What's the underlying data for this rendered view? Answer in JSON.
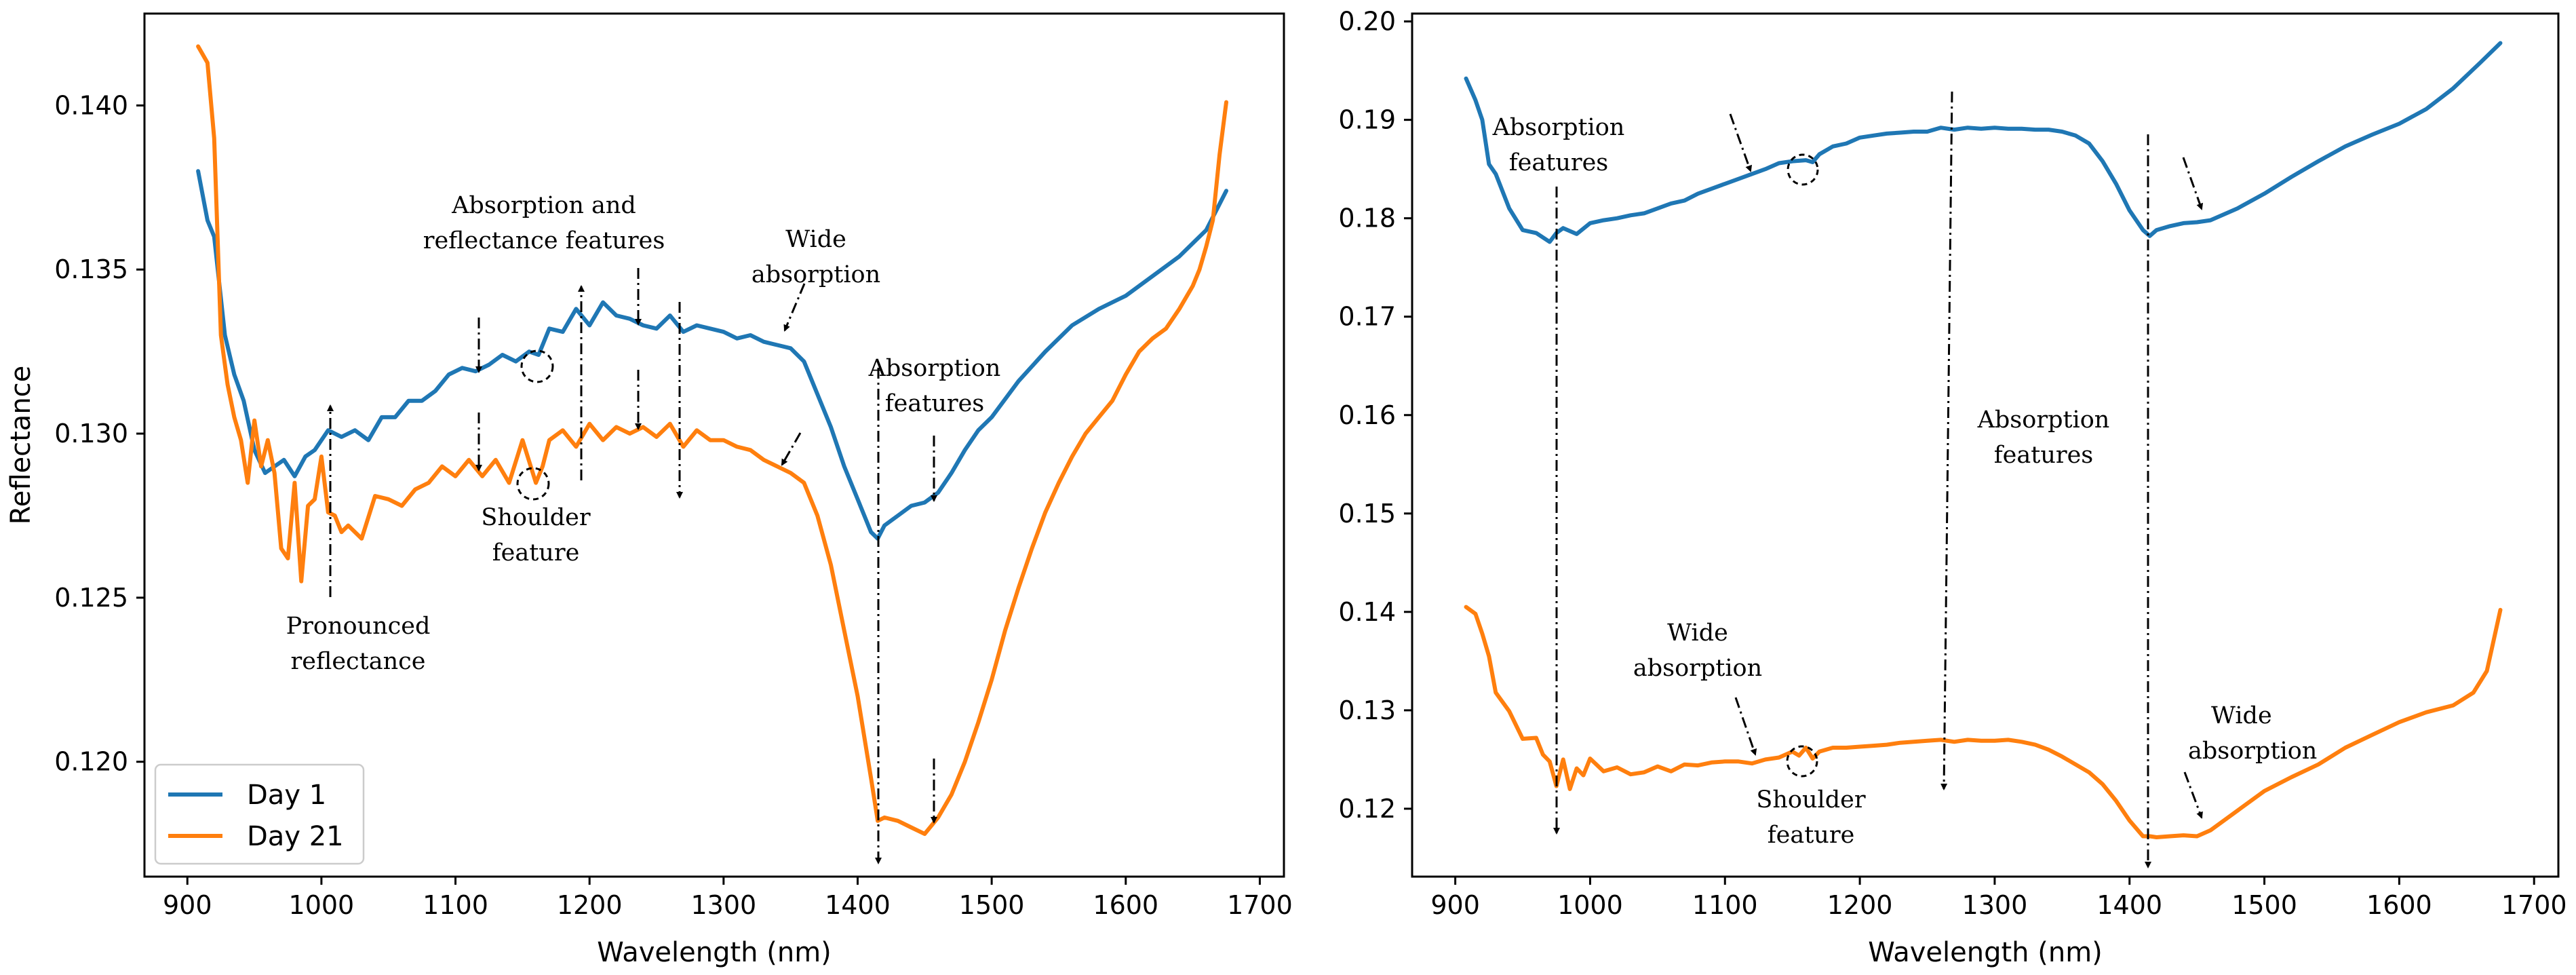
{
  "colors": {
    "day1": "#1f77b4",
    "day21": "#ff7f0e"
  },
  "chart_data": [
    {
      "type": "line",
      "title": "",
      "xlabel": "Wavelength (nm)",
      "ylabel": "Reflectance",
      "xlim": [
        868,
        1718
      ],
      "ylim": [
        0.1165,
        0.1428
      ],
      "xticks": [
        900,
        1000,
        1100,
        1200,
        1300,
        1400,
        1500,
        1600,
        1700
      ],
      "xtick_labels": [
        "900",
        "1000",
        "1100",
        "1200",
        "1300",
        "1400",
        "1500",
        "1600",
        "1700"
      ],
      "yticks": [
        0.12,
        0.125,
        0.13,
        0.135,
        0.14
      ],
      "ytick_labels": [
        "0.120",
        "0.125",
        "0.130",
        "0.135",
        "0.140"
      ],
      "legend": {
        "position": "lower-left",
        "entries": [
          "Day 1",
          "Day 21"
        ]
      },
      "series": [
        {
          "name": "Day 1",
          "color": "#1f77b4",
          "x": [
            908,
            915,
            920,
            928,
            935,
            942,
            950,
            958,
            965,
            972,
            980,
            988,
            995,
            1005,
            1015,
            1025,
            1035,
            1045,
            1055,
            1065,
            1075,
            1085,
            1095,
            1105,
            1115,
            1125,
            1135,
            1145,
            1155,
            1162,
            1170,
            1180,
            1190,
            1200,
            1210,
            1220,
            1230,
            1240,
            1250,
            1260,
            1270,
            1280,
            1290,
            1300,
            1310,
            1320,
            1330,
            1340,
            1350,
            1360,
            1370,
            1380,
            1390,
            1400,
            1410,
            1415,
            1420,
            1430,
            1440,
            1450,
            1460,
            1470,
            1480,
            1490,
            1500,
            1520,
            1540,
            1560,
            1580,
            1600,
            1620,
            1640,
            1660,
            1675
          ],
          "y": [
            0.138,
            0.1365,
            0.136,
            0.133,
            0.1318,
            0.131,
            0.1295,
            0.1288,
            0.129,
            0.1292,
            0.1287,
            0.1293,
            0.1295,
            0.1301,
            0.1299,
            0.1301,
            0.1298,
            0.1305,
            0.1305,
            0.131,
            0.131,
            0.1313,
            0.1318,
            0.132,
            0.1319,
            0.1321,
            0.1324,
            0.1322,
            0.1325,
            0.1324,
            0.1332,
            0.1331,
            0.1338,
            0.1333,
            0.134,
            0.1336,
            0.1335,
            0.1333,
            0.1332,
            0.1336,
            0.1331,
            0.1333,
            0.1332,
            0.1331,
            0.1329,
            0.133,
            0.1328,
            0.1327,
            0.1326,
            0.1322,
            0.1312,
            0.1302,
            0.129,
            0.128,
            0.127,
            0.1268,
            0.1272,
            0.1275,
            0.1278,
            0.1279,
            0.1282,
            0.1288,
            0.1295,
            0.1301,
            0.1305,
            0.1316,
            0.1325,
            0.1333,
            0.1338,
            0.1342,
            0.1348,
            0.1354,
            0.1362,
            0.1374
          ]
        },
        {
          "name": "Day 21",
          "color": "#ff7f0e",
          "x": [
            908,
            915,
            920,
            925,
            930,
            935,
            940,
            945,
            950,
            955,
            960,
            965,
            970,
            975,
            980,
            985,
            990,
            995,
            1000,
            1005,
            1010,
            1015,
            1020,
            1030,
            1040,
            1050,
            1060,
            1070,
            1080,
            1090,
            1100,
            1110,
            1120,
            1130,
            1140,
            1150,
            1160,
            1165,
            1170,
            1180,
            1190,
            1200,
            1210,
            1220,
            1230,
            1240,
            1250,
            1260,
            1270,
            1280,
            1290,
            1300,
            1310,
            1320,
            1330,
            1340,
            1350,
            1360,
            1370,
            1380,
            1390,
            1400,
            1410,
            1415,
            1420,
            1430,
            1440,
            1450,
            1460,
            1470,
            1480,
            1490,
            1500,
            1510,
            1520,
            1530,
            1540,
            1550,
            1560,
            1570,
            1580,
            1590,
            1600,
            1610,
            1620,
            1630,
            1640,
            1650,
            1655,
            1660,
            1665,
            1670,
            1675
          ],
          "y": [
            0.1418,
            0.1413,
            0.139,
            0.133,
            0.1315,
            0.1305,
            0.1298,
            0.1285,
            0.1304,
            0.129,
            0.1298,
            0.1288,
            0.1265,
            0.1262,
            0.1285,
            0.1255,
            0.1278,
            0.128,
            0.1293,
            0.1276,
            0.1275,
            0.127,
            0.1272,
            0.1268,
            0.1281,
            0.128,
            0.1278,
            0.1283,
            0.1285,
            0.129,
            0.1287,
            0.1292,
            0.1287,
            0.1292,
            0.1285,
            0.1298,
            0.1285,
            0.129,
            0.1298,
            0.1301,
            0.1296,
            0.1303,
            0.1298,
            0.1302,
            0.13,
            0.1302,
            0.1299,
            0.1303,
            0.1296,
            0.1301,
            0.1298,
            0.1298,
            0.1296,
            0.1295,
            0.1292,
            0.129,
            0.1288,
            0.1285,
            0.1275,
            0.126,
            0.124,
            0.122,
            0.1195,
            0.1182,
            0.1183,
            0.1182,
            0.118,
            0.1178,
            0.1183,
            0.119,
            0.12,
            0.1212,
            0.1225,
            0.124,
            0.1253,
            0.1265,
            0.1276,
            0.1285,
            0.1293,
            0.13,
            0.1305,
            0.131,
            0.1318,
            0.1325,
            0.1329,
            0.1332,
            0.1338,
            0.1345,
            0.135,
            0.1357,
            0.1365,
            0.1385,
            0.1401
          ]
        }
      ],
      "annotations": {
        "absorption_reflectance_line1": "Absorption and",
        "absorption_reflectance_line2": "reflectance features",
        "wide_absorption_line1": "Wide",
        "wide_absorption_line2": "absorption",
        "absorption_features_line1": "Absorption",
        "absorption_features_line2": "features",
        "shoulder_line1": "Shoulder",
        "shoulder_line2": "feature",
        "pronounced_line1": "Pronounced",
        "pronounced_line2": "reflectance"
      }
    },
    {
      "type": "line",
      "title": "",
      "xlabel": "Wavelength (nm)",
      "ylabel": "",
      "xlim": [
        868,
        1718
      ],
      "ylim": [
        0.1131,
        0.2008
      ],
      "xticks": [
        900,
        1000,
        1100,
        1200,
        1300,
        1400,
        1500,
        1600,
        1700
      ],
      "xtick_labels": [
        "900",
        "1000",
        "1100",
        "1200",
        "1300",
        "1400",
        "1500",
        "1600",
        "1700"
      ],
      "yticks": [
        0.12,
        0.13,
        0.14,
        0.15,
        0.16,
        0.17,
        0.18,
        0.19,
        0.2
      ],
      "ytick_labels": [
        "0.12",
        "0.13",
        "0.14",
        "0.15",
        "0.16",
        "0.17",
        "0.18",
        "0.19",
        "0.20"
      ],
      "series": [
        {
          "name": "Day 1",
          "color": "#1f77b4",
          "x": [
            908,
            915,
            920,
            925,
            930,
            940,
            950,
            960,
            970,
            975,
            980,
            990,
            1000,
            1010,
            1020,
            1030,
            1040,
            1050,
            1060,
            1070,
            1080,
            1090,
            1100,
            1110,
            1120,
            1130,
            1140,
            1150,
            1160,
            1165,
            1170,
            1180,
            1190,
            1200,
            1210,
            1220,
            1230,
            1240,
            1250,
            1260,
            1270,
            1280,
            1290,
            1300,
            1310,
            1320,
            1330,
            1340,
            1350,
            1360,
            1370,
            1380,
            1390,
            1400,
            1410,
            1415,
            1420,
            1430,
            1440,
            1450,
            1460,
            1480,
            1500,
            1520,
            1540,
            1560,
            1580,
            1600,
            1620,
            1640,
            1660,
            1675
          ],
          "y": [
            0.1942,
            0.192,
            0.19,
            0.1855,
            0.1845,
            0.181,
            0.1788,
            0.1785,
            0.1776,
            0.1785,
            0.179,
            0.1784,
            0.1795,
            0.1798,
            0.18,
            0.1803,
            0.1805,
            0.181,
            0.1815,
            0.1818,
            0.1825,
            0.183,
            0.1835,
            0.184,
            0.1845,
            0.185,
            0.1856,
            0.1858,
            0.1859,
            0.1857,
            0.1865,
            0.1873,
            0.1876,
            0.1882,
            0.1884,
            0.1886,
            0.1887,
            0.1888,
            0.1888,
            0.1892,
            0.189,
            0.1892,
            0.1891,
            0.1892,
            0.1891,
            0.1891,
            0.189,
            0.189,
            0.1888,
            0.1884,
            0.1876,
            0.1858,
            0.1835,
            0.1808,
            0.1788,
            0.1782,
            0.1788,
            0.1792,
            0.1795,
            0.1796,
            0.1798,
            0.181,
            0.1825,
            0.1842,
            0.1858,
            0.1873,
            0.1885,
            0.1896,
            0.1911,
            0.1932,
            0.1958,
            0.1978
          ]
        },
        {
          "name": "Day 21",
          "color": "#ff7f0e",
          "x": [
            908,
            915,
            920,
            925,
            930,
            940,
            950,
            960,
            965,
            970,
            975,
            980,
            985,
            990,
            995,
            1000,
            1010,
            1020,
            1030,
            1040,
            1050,
            1060,
            1070,
            1080,
            1090,
            1100,
            1110,
            1120,
            1130,
            1140,
            1150,
            1155,
            1160,
            1165,
            1170,
            1180,
            1190,
            1200,
            1210,
            1220,
            1230,
            1240,
            1250,
            1260,
            1270,
            1280,
            1290,
            1300,
            1310,
            1320,
            1330,
            1340,
            1350,
            1360,
            1370,
            1380,
            1390,
            1400,
            1410,
            1415,
            1420,
            1430,
            1440,
            1450,
            1460,
            1480,
            1500,
            1520,
            1540,
            1560,
            1580,
            1600,
            1620,
            1640,
            1655,
            1665,
            1675
          ],
          "y": [
            0.1405,
            0.1398,
            0.1378,
            0.1355,
            0.1318,
            0.1299,
            0.1271,
            0.1272,
            0.1255,
            0.1248,
            0.1223,
            0.125,
            0.122,
            0.1241,
            0.1234,
            0.1251,
            0.1238,
            0.1242,
            0.1235,
            0.1237,
            0.1243,
            0.1238,
            0.1245,
            0.1244,
            0.1247,
            0.1248,
            0.1248,
            0.1246,
            0.125,
            0.1252,
            0.1258,
            0.1254,
            0.1262,
            0.1251,
            0.1258,
            0.1262,
            0.1262,
            0.1263,
            0.1264,
            0.1265,
            0.1267,
            0.1268,
            0.1269,
            0.127,
            0.1268,
            0.127,
            0.1269,
            0.1269,
            0.127,
            0.1268,
            0.1265,
            0.126,
            0.1253,
            0.1245,
            0.1237,
            0.1225,
            0.1208,
            0.1188,
            0.1172,
            0.1172,
            0.1171,
            0.1172,
            0.1173,
            0.1172,
            0.1178,
            0.1198,
            0.1218,
            0.1232,
            0.1245,
            0.1262,
            0.1275,
            0.1288,
            0.1298,
            0.1305,
            0.1318,
            0.134,
            0.1402
          ]
        }
      ],
      "annotations": {
        "absorption_features_line1": "Absorption",
        "absorption_features_line2": "features",
        "middle_absorption_line1": "Absorption",
        "middle_absorption_line2": "features",
        "wide_absorption_line1": "Wide",
        "wide_absorption_line2": "absorption",
        "shoulder_line1": "Shoulder",
        "shoulder_line2": "feature",
        "wide_absorption_right_line1": "Wide",
        "wide_absorption_right_line2": "absorption"
      }
    }
  ]
}
